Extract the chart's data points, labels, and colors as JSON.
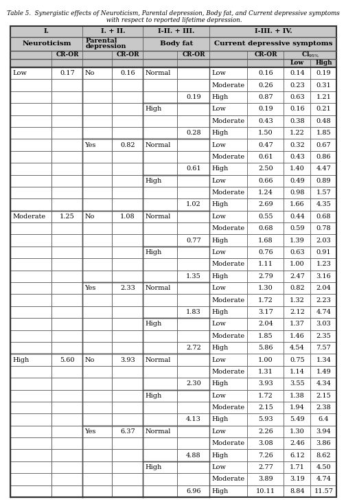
{
  "title_line1": "Table 5.  Synergistic effects of Neuroticism, Parental depression, Body fat, and Current depressive symptoms",
  "title_line2": " with respect to reported lifetime depression.",
  "header_bg": "#C8C8C8",
  "rows": [
    [
      "Low",
      "0.17",
      "No",
      "0.16",
      "Normal",
      "",
      "Low",
      "0.16",
      "0.14",
      "0.19"
    ],
    [
      "",
      "",
      "",
      "",
      "",
      "",
      "Moderate",
      "0.26",
      "0.23",
      "0.31"
    ],
    [
      "",
      "",
      "",
      "",
      "",
      "0.19",
      "High",
      "0.87",
      "0.63",
      "1.21"
    ],
    [
      "",
      "",
      "",
      "",
      "High",
      "",
      "Low",
      "0.19",
      "0.16",
      "0.21"
    ],
    [
      "",
      "",
      "",
      "",
      "",
      "",
      "Moderate",
      "0.43",
      "0.38",
      "0.48"
    ],
    [
      "",
      "",
      "",
      "",
      "",
      "0.28",
      "High",
      "1.50",
      "1.22",
      "1.85"
    ],
    [
      "",
      "",
      "Yes",
      "0.82",
      "Normal",
      "",
      "Low",
      "0.47",
      "0.32",
      "0.67"
    ],
    [
      "",
      "",
      "",
      "",
      "",
      "",
      "Moderate",
      "0.61",
      "0.43",
      "0.86"
    ],
    [
      "",
      "",
      "",
      "",
      "",
      "0.61",
      "High",
      "2.50",
      "1.40",
      "4.47"
    ],
    [
      "",
      "",
      "",
      "",
      "High",
      "",
      "Low",
      "0.66",
      "0.49",
      "0.89"
    ],
    [
      "",
      "",
      "",
      "",
      "",
      "",
      "Moderate",
      "1.24",
      "0.98",
      "1.57"
    ],
    [
      "",
      "",
      "",
      "",
      "",
      "1.02",
      "High",
      "2.69",
      "1.66",
      "4.35"
    ],
    [
      "Moderate",
      "1.25",
      "No",
      "1.08",
      "Normal",
      "",
      "Low",
      "0.55",
      "0.44",
      "0.68"
    ],
    [
      "",
      "",
      "",
      "",
      "",
      "",
      "Moderate",
      "0.68",
      "0.59",
      "0.78"
    ],
    [
      "",
      "",
      "",
      "",
      "",
      "0.77",
      "High",
      "1.68",
      "1.39",
      "2.03"
    ],
    [
      "",
      "",
      "",
      "",
      "High",
      "",
      "Low",
      "0.76",
      "0.63",
      "0.91"
    ],
    [
      "",
      "",
      "",
      "",
      "",
      "",
      "Moderate",
      "1.11",
      "1.00",
      "1.23"
    ],
    [
      "",
      "",
      "",
      "",
      "",
      "1.35",
      "High",
      "2.79",
      "2.47",
      "3.16"
    ],
    [
      "",
      "",
      "Yes",
      "2.33",
      "Normal",
      "",
      "Low",
      "1.30",
      "0.82",
      "2.04"
    ],
    [
      "",
      "",
      "",
      "",
      "",
      "",
      "Moderate",
      "1.72",
      "1.32",
      "2.23"
    ],
    [
      "",
      "",
      "",
      "",
      "",
      "1.83",
      "High",
      "3.17",
      "2.12",
      "4.74"
    ],
    [
      "",
      "",
      "",
      "",
      "High",
      "",
      "Low",
      "2.04",
      "1.37",
      "3.03"
    ],
    [
      "",
      "",
      "",
      "",
      "",
      "",
      "Moderate",
      "1.85",
      "1.46",
      "2.35"
    ],
    [
      "",
      "",
      "",
      "",
      "",
      "2.72",
      "High",
      "5.86",
      "4.54",
      "7.57"
    ],
    [
      "High",
      "5.60",
      "No",
      "3.93",
      "Normal",
      "",
      "Low",
      "1.00",
      "0.75",
      "1.34"
    ],
    [
      "",
      "",
      "",
      "",
      "",
      "",
      "Moderate",
      "1.31",
      "1.14",
      "1.49"
    ],
    [
      "",
      "",
      "",
      "",
      "",
      "2.30",
      "High",
      "3.93",
      "3.55",
      "4.34"
    ],
    [
      "",
      "",
      "",
      "",
      "High",
      "",
      "Low",
      "1.72",
      "1.38",
      "2.15"
    ],
    [
      "",
      "",
      "",
      "",
      "",
      "",
      "Moderate",
      "2.15",
      "1.94",
      "2.38"
    ],
    [
      "",
      "",
      "",
      "",
      "",
      "4.13",
      "High",
      "5.93",
      "5.49",
      "6.4"
    ],
    [
      "",
      "",
      "Yes",
      "6.37",
      "Normal",
      "",
      "Low",
      "2.26",
      "1.30",
      "3.94"
    ],
    [
      "",
      "",
      "",
      "",
      "",
      "",
      "Moderate",
      "3.08",
      "2.46",
      "3.86"
    ],
    [
      "",
      "",
      "",
      "",
      "",
      "4.88",
      "High",
      "7.26",
      "6.12",
      "8.62"
    ],
    [
      "",
      "",
      "",
      "",
      "High",
      "",
      "Low",
      "2.77",
      "1.71",
      "4.50"
    ],
    [
      "",
      "",
      "",
      "",
      "",
      "",
      "Moderate",
      "3.89",
      "3.19",
      "4.74"
    ],
    [
      "",
      "",
      "",
      "",
      "",
      "6.96",
      "High",
      "10.11",
      "8.84",
      "11.57"
    ]
  ]
}
